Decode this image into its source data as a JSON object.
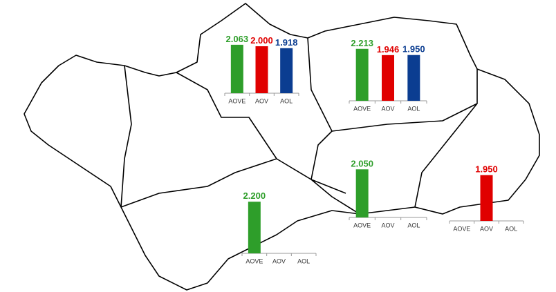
{
  "chart_data": [
    {
      "type": "bar",
      "categories": [
        "AOVE",
        "AOV",
        "AOL"
      ],
      "values": [
        2063,
        2000,
        1918
      ],
      "value_labels": [
        "2.063",
        "2.000",
        "1.918"
      ],
      "colors": [
        "#2e9e2a",
        "#e00000",
        "#0b3d91"
      ]
    },
    {
      "type": "bar",
      "categories": [
        "AOVE",
        "AOV",
        "AOL"
      ],
      "values": [
        2213,
        1946,
        1950
      ],
      "value_labels": [
        "2.213",
        "1.946",
        "1.950"
      ],
      "colors": [
        "#2e9e2a",
        "#e00000",
        "#0b3d91"
      ]
    },
    {
      "type": "bar",
      "categories": [
        "AOVE",
        "AOV",
        "AOL"
      ],
      "values": [
        2050,
        null,
        null
      ],
      "value_labels": [
        "2.050",
        null,
        null
      ],
      "colors": [
        "#2e9e2a",
        "#e00000",
        "#0b3d91"
      ]
    },
    {
      "type": "bar",
      "categories": [
        "AOVE",
        "AOV",
        "AOL"
      ],
      "values": [
        null,
        1950,
        null
      ],
      "value_labels": [
        null,
        "1.950",
        null
      ],
      "colors": [
        "#2e9e2a",
        "#e00000",
        "#0b3d91"
      ]
    },
    {
      "type": "bar",
      "categories": [
        "AOVE",
        "AOV",
        "AOL"
      ],
      "values": [
        2200,
        null,
        null
      ],
      "value_labels": [
        "2.200",
        null,
        null
      ],
      "colors": [
        "#2e9e2a",
        "#e00000",
        "#0b3d91"
      ]
    }
  ]
}
